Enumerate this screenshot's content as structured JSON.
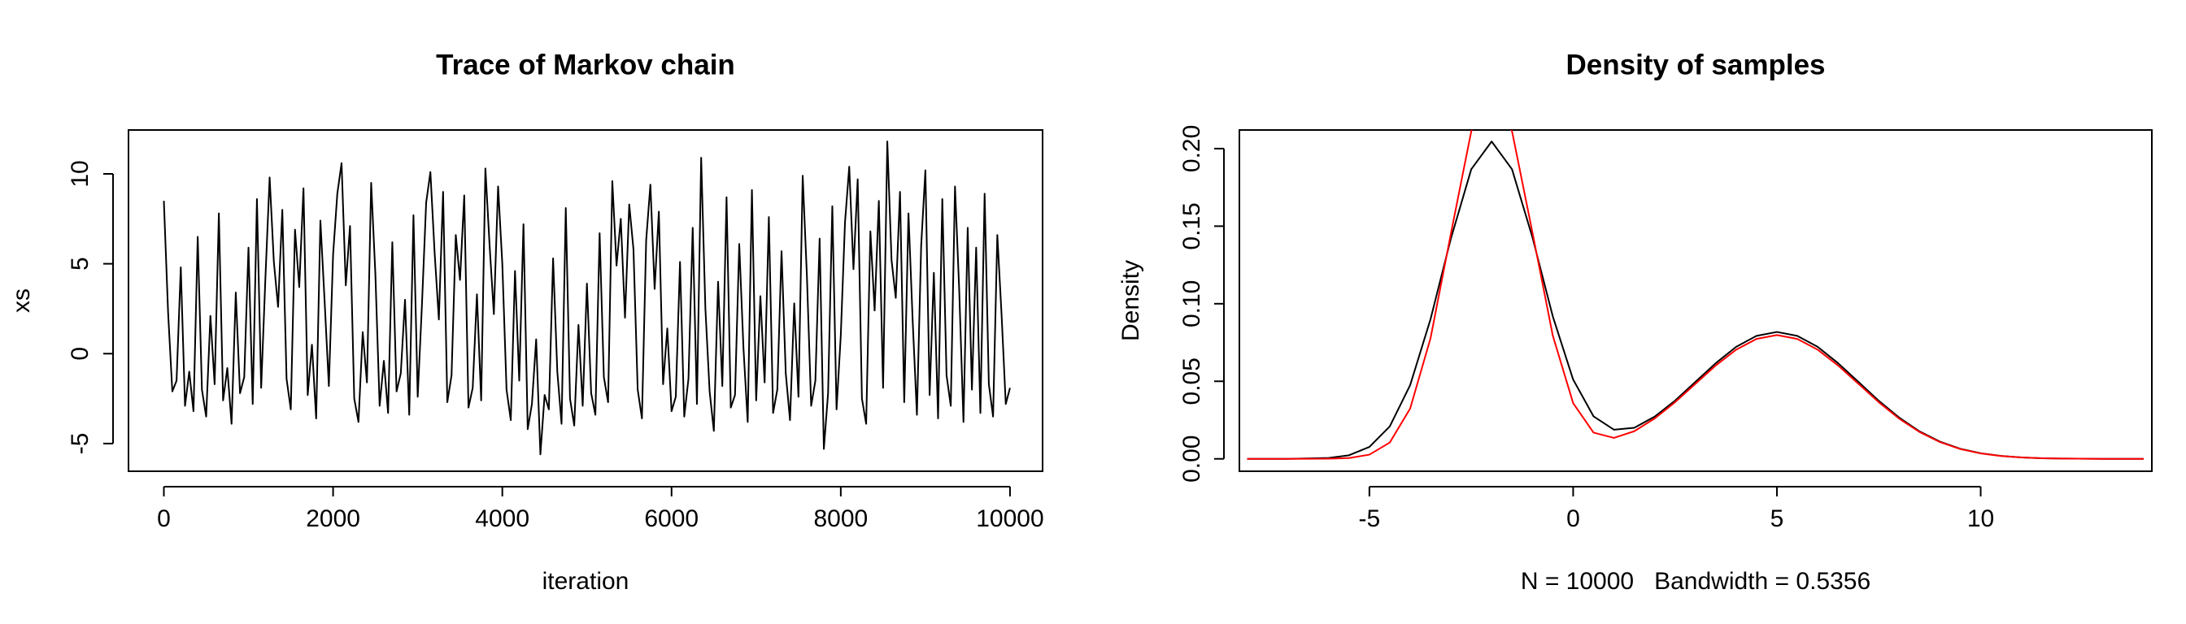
{
  "chart_data": [
    {
      "type": "line",
      "title": "Trace of Markov chain",
      "xlabel": "iteration",
      "ylabel": "xs",
      "xlim": [
        -418,
        10385
      ],
      "ylim": [
        -6.54,
        12.44
      ],
      "xticks": [
        0,
        2000,
        4000,
        6000,
        8000,
        10000
      ],
      "yticks": [
        -5,
        0,
        5,
        10
      ],
      "x": [
        0,
        50,
        100,
        150,
        200,
        250,
        300,
        350,
        400,
        450,
        500,
        550,
        600,
        650,
        700,
        750,
        800,
        850,
        900,
        950,
        1000,
        1050,
        1100,
        1150,
        1200,
        1250,
        1300,
        1350,
        1400,
        1450,
        1500,
        1550,
        1600,
        1650,
        1700,
        1750,
        1800,
        1850,
        1900,
        1950,
        2000,
        2050,
        2100,
        2150,
        2200,
        2250,
        2300,
        2350,
        2400,
        2450,
        2500,
        2550,
        2600,
        2650,
        2700,
        2750,
        2800,
        2850,
        2900,
        2950,
        3000,
        3050,
        3100,
        3150,
        3200,
        3250,
        3300,
        3350,
        3400,
        3450,
        3500,
        3550,
        3600,
        3650,
        3700,
        3750,
        3800,
        3850,
        3900,
        3950,
        4000,
        4050,
        4100,
        4150,
        4200,
        4250,
        4300,
        4350,
        4400,
        4450,
        4500,
        4550,
        4600,
        4650,
        4700,
        4750,
        4800,
        4850,
        4900,
        4950,
        5000,
        5050,
        5100,
        5150,
        5200,
        5250,
        5300,
        5350,
        5400,
        5450,
        5500,
        5550,
        5600,
        5650,
        5700,
        5750,
        5800,
        5850,
        5900,
        5950,
        6000,
        6050,
        6100,
        6150,
        6200,
        6250,
        6300,
        6350,
        6400,
        6450,
        6500,
        6550,
        6600,
        6650,
        6700,
        6750,
        6800,
        6850,
        6900,
        6950,
        7000,
        7050,
        7100,
        7150,
        7200,
        7250,
        7300,
        7350,
        7400,
        7450,
        7500,
        7550,
        7600,
        7650,
        7700,
        7750,
        7800,
        7850,
        7900,
        7950,
        8000,
        8050,
        8100,
        8150,
        8200,
        8250,
        8300,
        8350,
        8400,
        8450,
        8500,
        8550,
        8600,
        8650,
        8700,
        8750,
        8800,
        8850,
        8900,
        8950,
        9000,
        9050,
        9100,
        9150,
        9200,
        9250,
        9300,
        9350,
        9400,
        9450,
        9500,
        9550,
        9600,
        9650,
        9700,
        9750,
        9800,
        9850,
        9900,
        9950,
        10000
      ],
      "series": [
        {
          "color": "#000000",
          "values": [
            8.5,
            2.3,
            -2.1,
            -1.5,
            4.8,
            -2.9,
            -1.0,
            -3.2,
            6.5,
            -2.0,
            -3.5,
            2.1,
            -1.7,
            7.8,
            -2.6,
            -0.8,
            -3.9,
            3.4,
            -2.2,
            -1.3,
            5.9,
            -2.8,
            8.6,
            -1.9,
            4.2,
            9.8,
            5.1,
            2.6,
            8.0,
            -1.4,
            -3.1,
            6.9,
            3.7,
            9.2,
            -2.3,
            0.5,
            -3.6,
            7.4,
            2.9,
            -1.8,
            5.5,
            8.9,
            10.6,
            3.8,
            7.1,
            -2.5,
            -3.8,
            1.2,
            -1.6,
            9.5,
            4.4,
            -2.9,
            -0.4,
            -3.3,
            6.2,
            -2.1,
            -1.1,
            3.0,
            -3.4,
            7.7,
            -2.4,
            2.7,
            8.4,
            10.1,
            5.6,
            1.9,
            9.0,
            -2.7,
            -1.2,
            6.6,
            4.1,
            8.8,
            -3.0,
            -1.9,
            3.3,
            -2.6,
            10.3,
            6.0,
            2.2,
            9.3,
            5.0,
            -2.0,
            -3.7,
            4.6,
            -1.5,
            7.2,
            -4.2,
            -2.8,
            0.8,
            -5.6,
            -2.3,
            -3.1,
            5.3,
            -1.0,
            -3.9,
            8.1,
            -2.5,
            -4.0,
            1.6,
            -2.9,
            3.9,
            -2.2,
            -3.4,
            6.7,
            -1.3,
            -2.7,
            9.6,
            4.9,
            7.5,
            2.0,
            8.3,
            5.8,
            -2.0,
            -3.6,
            6.3,
            9.4,
            3.6,
            7.9,
            -1.7,
            1.4,
            -3.2,
            -2.4,
            5.1,
            -3.5,
            -1.4,
            7.0,
            -2.8,
            10.9,
            2.5,
            -2.1,
            -4.3,
            4.0,
            -1.8,
            8.7,
            -3.0,
            -2.3,
            6.1,
            0.3,
            -3.8,
            9.1,
            -2.6,
            3.2,
            -1.6,
            7.6,
            -3.3,
            -2.0,
            5.7,
            -1.1,
            -3.7,
            2.8,
            -2.4,
            9.9,
            4.3,
            -2.9,
            -1.5,
            6.4,
            -5.3,
            -2.2,
            8.2,
            -3.1,
            1.0,
            7.3,
            10.4,
            4.7,
            9.7,
            -2.5,
            -3.9,
            6.8,
            2.4,
            8.5,
            -1.9,
            11.8,
            5.2,
            3.1,
            9.0,
            -2.7,
            7.8,
            1.8,
            -3.4,
            6.0,
            10.2,
            -2.3,
            4.5,
            -3.6,
            8.6,
            -1.2,
            -2.9,
            9.3,
            3.5,
            -3.8,
            7.0,
            -2.0,
            5.9,
            -3.3,
            8.9,
            -1.7,
            -3.5,
            6.6,
            2.2,
            -2.8,
            -1.9
          ]
        }
      ]
    },
    {
      "type": "line",
      "title": "Density of samples",
      "xlabel": "N = 10000   Bandwidth = 0.5356",
      "ylabel": "Density",
      "xlim": [
        -8.19,
        14.2
      ],
      "ylim": [
        -0.008,
        0.212
      ],
      "xticks": [
        -5,
        0,
        5,
        10
      ],
      "yticks": [
        {
          "value": 0,
          "label": "0.00"
        },
        0.05,
        {
          "value": 0.1,
          "label": "0.10"
        },
        0.15,
        {
          "value": 0.2,
          "label": "0.20"
        }
      ],
      "x": [
        -8,
        -7,
        -6,
        -5.5,
        -5,
        -4.5,
        -4,
        -3.5,
        -3,
        -2.5,
        -2,
        -1.5,
        -1,
        -0.5,
        0,
        0.5,
        1,
        1.5,
        2,
        2.5,
        3,
        3.5,
        4,
        4.5,
        5,
        5.5,
        6,
        6.5,
        7,
        7.5,
        8,
        8.5,
        9,
        9.5,
        10,
        10.5,
        11,
        11.5,
        12,
        13,
        14
      ],
      "series": [
        {
          "color": "#000000",
          "values": [
            0,
            0,
            0.0006,
            0.0023,
            0.0077,
            0.0209,
            0.0475,
            0.09,
            0.142,
            0.1867,
            0.2046,
            0.1867,
            0.1429,
            0.0919,
            0.0511,
            0.0274,
            0.0188,
            0.02,
            0.0272,
            0.0375,
            0.0496,
            0.0617,
            0.0722,
            0.0793,
            0.0818,
            0.0793,
            0.0722,
            0.0617,
            0.0496,
            0.0374,
            0.0266,
            0.0177,
            0.0111,
            0.0065,
            0.0036,
            0.0019,
            0.0009,
            0.0004,
            0.0002,
            0,
            0
          ]
        },
        {
          "color": "#ff0000",
          "values": [
            0,
            0,
            0.0001,
            0.0005,
            0.0027,
            0.0105,
            0.0324,
            0.0777,
            0.1452,
            0.2112,
            0.2394,
            0.2112,
            0.1461,
            0.0795,
            0.0359,
            0.0169,
            0.0135,
            0.0178,
            0.026,
            0.0365,
            0.0484,
            0.0602,
            0.0704,
            0.0773,
            0.0798,
            0.0773,
            0.0704,
            0.0602,
            0.0484,
            0.0365,
            0.0259,
            0.0173,
            0.0108,
            0.0063,
            0.0035,
            0.0018,
            0.0009,
            0.0004,
            0.0002,
            0,
            0
          ]
        }
      ]
    }
  ]
}
